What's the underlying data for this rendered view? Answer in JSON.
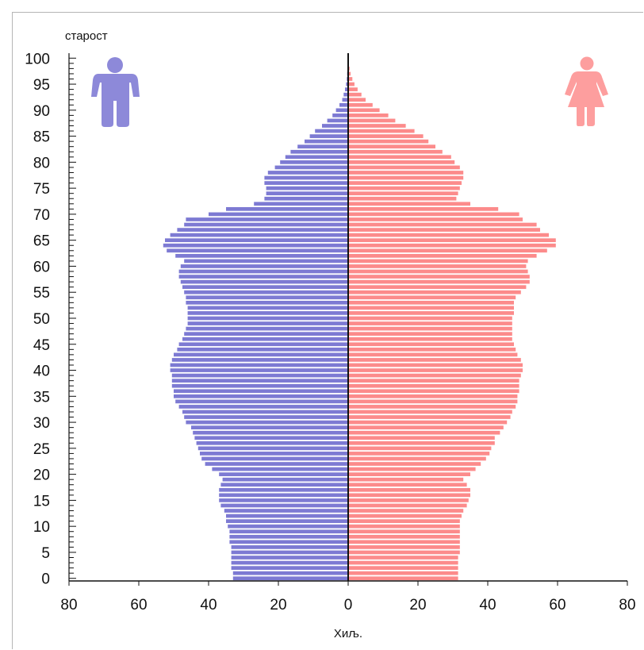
{
  "chart_data": {
    "type": "bar",
    "orientation": "horizontal",
    "title": "",
    "ylabel": "старост",
    "xlabel": "Хиљ.",
    "ylim": [
      0,
      100
    ],
    "xlim": [
      -80,
      80
    ],
    "y_ticks": [
      "0",
      "5",
      "10",
      "15",
      "20",
      "25",
      "30",
      "35",
      "40",
      "45",
      "50",
      "55",
      "60",
      "65",
      "70",
      "75",
      "80",
      "85",
      "90",
      "95",
      "100"
    ],
    "x_ticks": [
      "80",
      "60",
      "40",
      "20",
      "0",
      "20",
      "40",
      "60",
      "80"
    ],
    "x_tick_values": [
      -80,
      -60,
      -40,
      -20,
      0,
      20,
      40,
      60,
      80
    ],
    "ages": [
      0,
      1,
      2,
      3,
      4,
      5,
      6,
      7,
      8,
      9,
      10,
      11,
      12,
      13,
      14,
      15,
      16,
      17,
      18,
      19,
      20,
      21,
      22,
      23,
      24,
      25,
      26,
      27,
      28,
      29,
      30,
      31,
      32,
      33,
      34,
      35,
      36,
      37,
      38,
      39,
      40,
      41,
      42,
      43,
      44,
      45,
      46,
      47,
      48,
      49,
      50,
      51,
      52,
      53,
      54,
      55,
      56,
      57,
      58,
      59,
      60,
      61,
      62,
      63,
      64,
      65,
      66,
      67,
      68,
      69,
      70,
      71,
      72,
      73,
      74,
      75,
      76,
      77,
      78,
      79,
      80,
      81,
      82,
      83,
      84,
      85,
      86,
      87,
      88,
      89,
      90,
      91,
      92,
      93,
      94,
      95,
      96,
      97,
      98,
      99,
      100
    ],
    "series": [
      {
        "name": "male",
        "color": "#7d7ad3",
        "values": [
          33,
          33,
          33.5,
          33.5,
          33.5,
          33.5,
          33.5,
          34,
          34,
          34,
          34.5,
          35,
          35,
          35.5,
          36.5,
          37,
          37,
          37,
          36.5,
          36,
          37,
          39,
          41,
          42,
          42.5,
          43,
          43.5,
          44,
          44.5,
          45,
          46.5,
          47,
          47.5,
          48.5,
          49.5,
          50,
          50,
          50.5,
          50.5,
          50.5,
          51,
          51,
          50.5,
          50,
          49,
          48.5,
          47.5,
          47,
          46.5,
          46,
          46,
          46,
          46,
          46.5,
          46.5,
          47,
          47.5,
          48,
          48.5,
          48.5,
          48,
          47,
          49.5,
          52,
          53,
          52.5,
          51,
          49,
          47,
          46.5,
          40,
          35,
          27,
          24,
          23.5,
          23.5,
          24,
          24,
          23,
          21,
          19.5,
          18,
          16.5,
          14.5,
          12.5,
          11,
          9.5,
          7.5,
          6,
          4.5,
          3.5,
          2.5,
          1.7,
          1.3,
          0.9,
          0.6,
          0.4,
          0.3,
          0.2,
          0.1,
          0.05
        ]
      },
      {
        "name": "female",
        "color": "#fc8b8b",
        "values": [
          31.5,
          31.5,
          31.5,
          31.5,
          31.5,
          32,
          32,
          32,
          32,
          32,
          32,
          32,
          32.5,
          33,
          34,
          34.5,
          35,
          35,
          34,
          33,
          35,
          36.5,
          38,
          39.5,
          40.5,
          41,
          42,
          42,
          43.5,
          44.5,
          45.5,
          46.5,
          47,
          48,
          48.5,
          48.5,
          49,
          49,
          49,
          49.5,
          50,
          50,
          49.5,
          48.5,
          48,
          47.5,
          47,
          47,
          47,
          47,
          47,
          47.5,
          47.5,
          47.5,
          48,
          49.5,
          51,
          52,
          52,
          51.5,
          51,
          51.5,
          54,
          57,
          59.5,
          59.5,
          57.5,
          55,
          54,
          50,
          49,
          43,
          35,
          31,
          31.5,
          32,
          32.5,
          33,
          33,
          32,
          30.5,
          29.5,
          27,
          25,
          23,
          21.5,
          19,
          16.5,
          13.5,
          11.5,
          9,
          7,
          5,
          3.8,
          2.7,
          1.8,
          1.2,
          0.7,
          0.4,
          0.2,
          0.1
        ]
      }
    ],
    "legend": [
      {
        "name": "male-figure-icon",
        "color": "#8d89d9"
      },
      {
        "name": "female-figure-icon",
        "color": "#fd9e9e"
      }
    ]
  }
}
